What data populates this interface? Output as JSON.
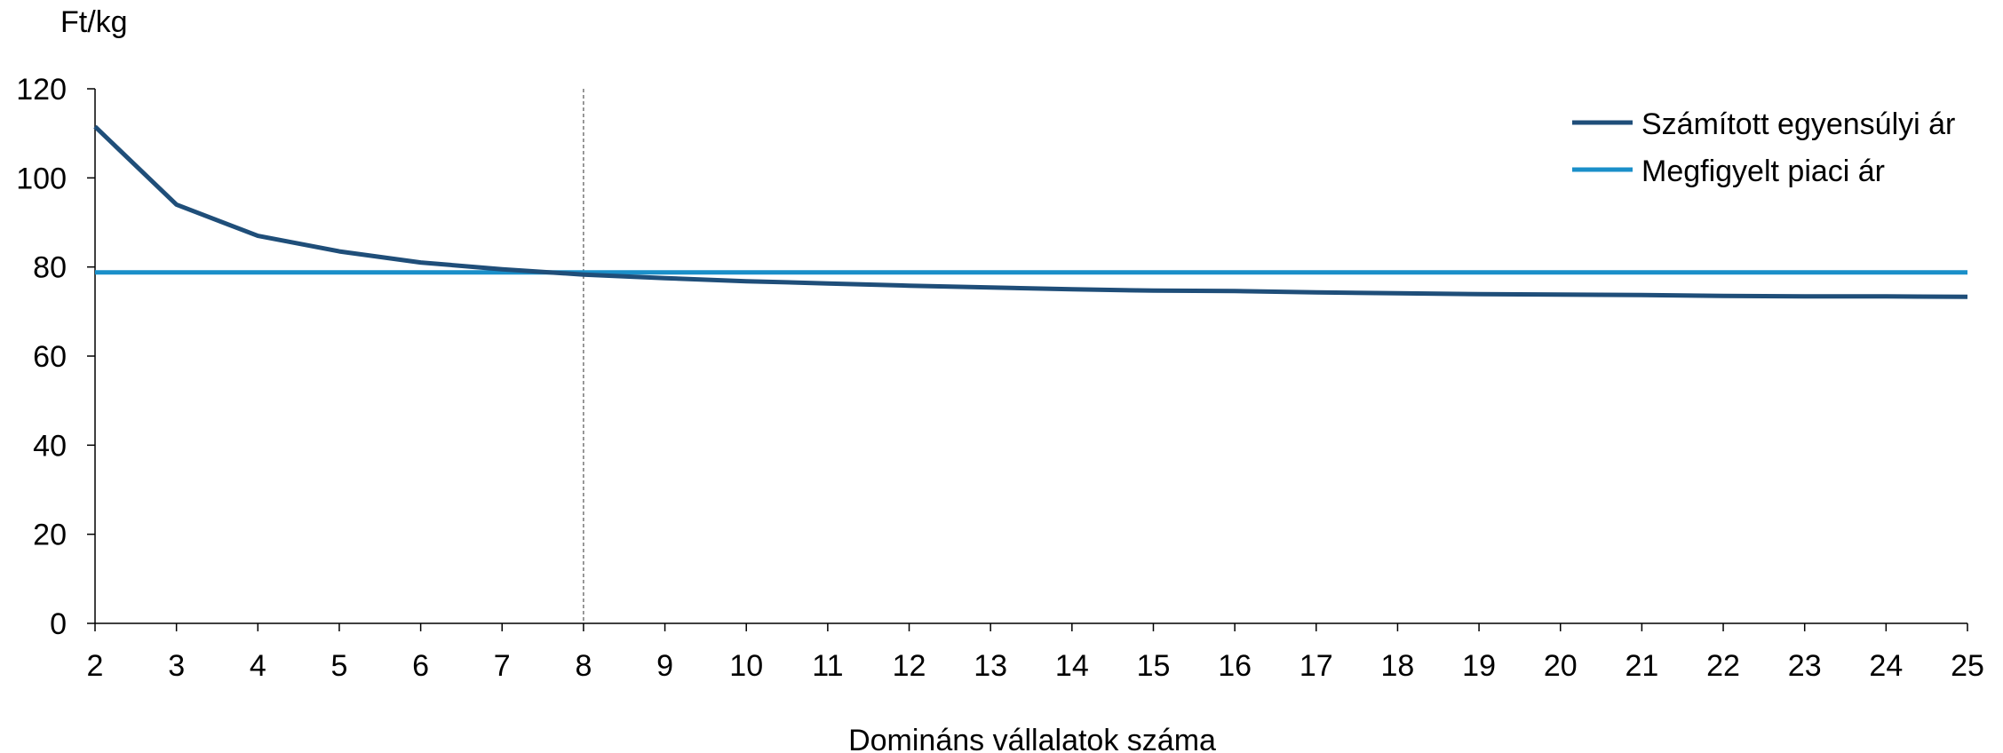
{
  "chart_data": {
    "type": "line",
    "ylabel": "Ft/kg",
    "xlabel": "Domináns vállalatok száma",
    "x": [
      2,
      3,
      4,
      5,
      6,
      7,
      8,
      9,
      10,
      11,
      12,
      13,
      14,
      15,
      16,
      17,
      18,
      19,
      20,
      21,
      22,
      23,
      24,
      25
    ],
    "ylim": [
      0,
      120
    ],
    "yticks": [
      0,
      20,
      40,
      60,
      80,
      100,
      120
    ],
    "reference_line_x": 8,
    "legend_position": "top-right",
    "grid": false,
    "series": [
      {
        "name": "Számított egyensúlyi ár",
        "color": "#1f4e79",
        "values": [
          111.5,
          94.0,
          87.0,
          83.5,
          81.0,
          79.5,
          78.3,
          77.5,
          76.8,
          76.3,
          75.8,
          75.4,
          75.0,
          74.7,
          74.6,
          74.3,
          74.1,
          73.9,
          73.8,
          73.7,
          73.5,
          73.4,
          73.4,
          73.3
        ]
      },
      {
        "name": "Megfigyelt piaci ár",
        "color": "#1a8fc9",
        "values": [
          78.8,
          78.8,
          78.8,
          78.8,
          78.8,
          78.8,
          78.8,
          78.8,
          78.8,
          78.8,
          78.8,
          78.8,
          78.8,
          78.8,
          78.8,
          78.8,
          78.8,
          78.8,
          78.8,
          78.8,
          78.8,
          78.8,
          78.8,
          78.8
        ]
      }
    ]
  }
}
